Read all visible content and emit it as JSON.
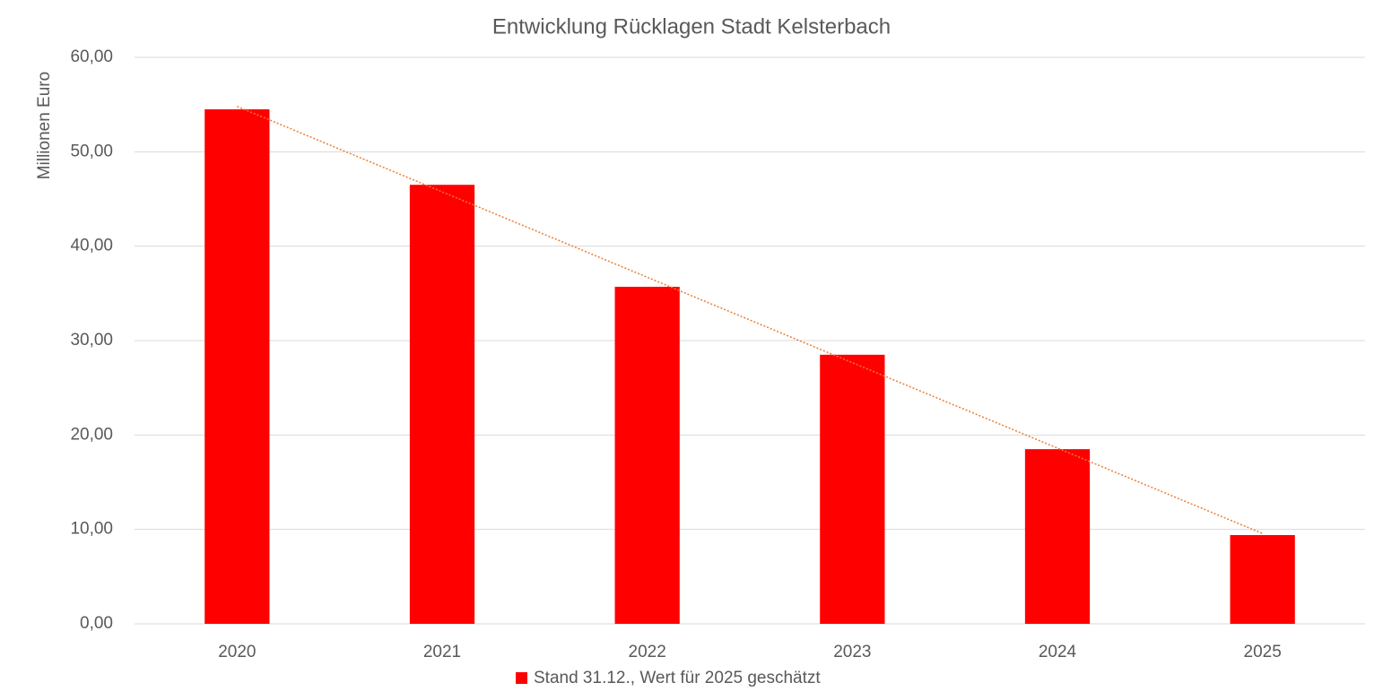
{
  "chart_data": {
    "type": "bar",
    "title": "Entwicklung Rücklagen Stadt Kelsterbach",
    "y_label": "Millionen Euro",
    "categories": [
      "2020",
      "2021",
      "2022",
      "2023",
      "2024",
      "2025"
    ],
    "series": [
      {
        "name": "Stand 31.12., Wert für 2025 geschätzt",
        "color": "#ff0000",
        "values": [
          54.5,
          46.5,
          35.7,
          28.5,
          18.5,
          9.4
        ]
      }
    ],
    "ylim": [
      0,
      60
    ],
    "yticks": [
      {
        "value": 0,
        "label": "0,00"
      },
      {
        "value": 10,
        "label": "10,00"
      },
      {
        "value": 20,
        "label": "20,00"
      },
      {
        "value": 30,
        "label": "30,00"
      },
      {
        "value": 40,
        "label": "40,00"
      },
      {
        "value": 50,
        "label": "50,00"
      },
      {
        "value": 60,
        "label": "60,00"
      }
    ],
    "grid": true,
    "trendline": {
      "type": "linear",
      "color": "#ed7d31"
    },
    "legend": "bottom"
  }
}
